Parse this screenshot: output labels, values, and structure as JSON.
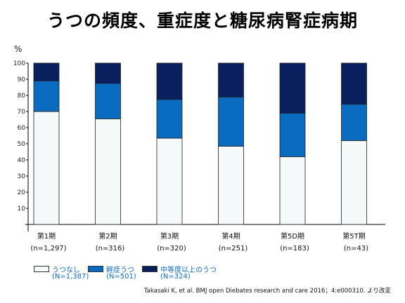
{
  "title": "うつの頻度、重症度と糖尿病腎症病期",
  "citation": "Takasaki K, et al. BMJ open Diebates research and care 2016；4:e000310. より改変",
  "chart_data": {
    "type": "bar",
    "stacked": true,
    "ylabel": "%",
    "ylim": [
      0,
      100
    ],
    "yticks": [
      10,
      20,
      30,
      40,
      50,
      60,
      70,
      80,
      90,
      100
    ],
    "categories": [
      "第1期",
      "第2期",
      "第3期",
      "第4期",
      "第5D期",
      "第5T期"
    ],
    "category_counts": [
      "(n=1,297)",
      "(n=316)",
      "(n=320)",
      "(n=251)",
      "(n=183)",
      "(n=43)"
    ],
    "series": [
      {
        "name": "うつなし",
        "count": "(N=1,387)",
        "color": "#f4f9fa",
        "values": [
          70,
          65.5,
          53.5,
          48.5,
          42,
          52
        ]
      },
      {
        "name": "軽症うつ",
        "count": "(N=501)",
        "color": "#0a6cc0",
        "values": [
          19,
          22,
          24,
          30.5,
          27,
          22.5
        ]
      },
      {
        "name": "中等度以上のうつ",
        "count": "(N=324)",
        "color": "#0a1f5e",
        "values": [
          11,
          12.5,
          22.5,
          21,
          31,
          25.5
        ]
      }
    ],
    "legend_position": "bottom-left",
    "grid": false
  }
}
